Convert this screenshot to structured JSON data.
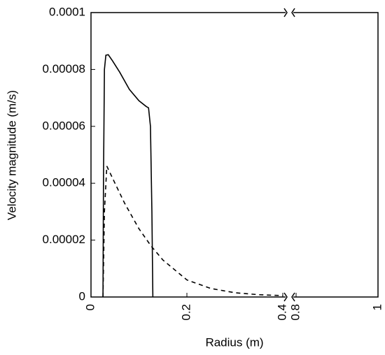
{
  "chart_data": {
    "type": "line",
    "x_label": "Radius (m)",
    "y_label": "Velocity magnitude (m/s)",
    "xlim": [
      0,
      1
    ],
    "x_break": [
      0.4,
      0.8
    ],
    "xticks": [
      0,
      0.2,
      0.4,
      0.8,
      1
    ],
    "ylim": [
      0,
      0.0001
    ],
    "yticks": [
      0,
      2e-05,
      4e-05,
      6e-05,
      8e-05,
      0.0001
    ],
    "series": [
      {
        "color": "#000000",
        "style": "solid",
        "x": [
          0.025,
          0.026,
          0.028,
          0.031,
          0.036,
          0.045,
          0.06,
          0.08,
          0.1,
          0.115,
          0.12,
          0.124,
          0.127,
          0.129
        ],
        "values": [
          0,
          4e-05,
          8e-05,
          8.5e-05,
          8.52e-05,
          8.3e-05,
          7.9e-05,
          7.3e-05,
          6.9e-05,
          6.7e-05,
          6.65e-05,
          6e-05,
          3e-05,
          0
        ]
      },
      {
        "color": "#000000",
        "style": "dashed",
        "x": [
          0.025,
          0.028,
          0.033,
          0.05,
          0.07,
          0.1,
          0.125,
          0.15,
          0.2,
          0.25,
          0.3,
          0.35,
          0.4
        ],
        "values": [
          0,
          3e-05,
          4.6e-05,
          4e-05,
          3.3e-05,
          2.4e-05,
          1.8e-05,
          1.3e-05,
          6e-06,
          3e-06,
          1.5e-06,
          8e-07,
          5e-07
        ]
      }
    ]
  }
}
